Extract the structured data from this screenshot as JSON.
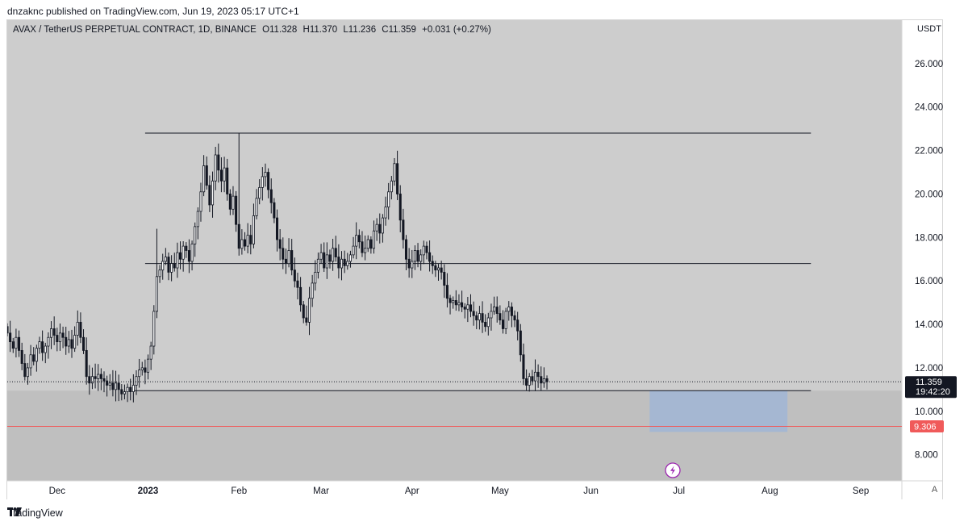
{
  "header": {
    "published": "dnzaknc published on TradingView.com, Jun 19, 2023 05:17 UTC+1"
  },
  "legend": {
    "symbol": "AVAX / TetherUS PERPETUAL CONTRACT, 1D, BINANCE",
    "open": "O11.328",
    "high": "H11.370",
    "low": "L11.236",
    "close": "C11.359",
    "change": "+0.031 (+0.27%)"
  },
  "price_axis": {
    "currency": "USDT",
    "ticks": [
      "26.000",
      "24.000",
      "22.000",
      "20.000",
      "18.000",
      "16.000",
      "14.000",
      "12.000",
      "10.000",
      "8.000"
    ],
    "last_price": "11.359",
    "countdown": "19:42:20",
    "target_label": "9.306"
  },
  "time_axis": {
    "labels": [
      "Dec",
      "2023",
      "Feb",
      "Mar",
      "Apr",
      "May",
      "Jun",
      "Jul",
      "Aug",
      "Sep"
    ],
    "scale_button": "A"
  },
  "footer": {
    "brand": "TradingView"
  },
  "colors": {
    "chart_bg": "#cdcdcd",
    "lower_zone": "#bfbfbf",
    "target_box": "#a5b7d2",
    "target_line": "#f05a5a",
    "candle_up": "#ffffff",
    "candle_down": "#131722",
    "event_icon": "#9c27b0"
  },
  "chart_data": {
    "type": "candlestick",
    "ylim": [
      6.8,
      28.0
    ],
    "price_ticks": [
      26,
      24,
      22,
      20,
      18,
      16,
      14,
      12,
      10,
      8
    ],
    "levels": [
      22.8,
      16.8,
      10.95
    ],
    "target_level": 9.306,
    "last_close": 11.359,
    "target_box": {
      "from": "2023-06-21",
      "to": "2023-08-07",
      "top": 10.95,
      "bottom": 9.05
    },
    "date_range": [
      "2022-11-14",
      "2023-09-15"
    ],
    "month_ticks": [
      {
        "label": "Dec",
        "date": "2022-12-01"
      },
      {
        "label": "2023",
        "date": "2023-01-01"
      },
      {
        "label": "Feb",
        "date": "2023-02-01"
      },
      {
        "label": "Mar",
        "date": "2023-03-01"
      },
      {
        "label": "Apr",
        "date": "2023-04-01"
      },
      {
        "label": "May",
        "date": "2023-05-01"
      },
      {
        "label": "Jun",
        "date": "2023-06-01"
      },
      {
        "label": "Jul",
        "date": "2023-07-01"
      },
      {
        "label": "Aug",
        "date": "2023-08-01"
      },
      {
        "label": "Sep",
        "date": "2023-09-01"
      }
    ],
    "series_start": "2022-11-14",
    "closes": [
      13.6,
      13.2,
      12.9,
      13.4,
      12.8,
      12.2,
      11.6,
      12.0,
      12.6,
      12.3,
      12.9,
      13.2,
      12.7,
      13.0,
      13.4,
      13.8,
      13.5,
      13.2,
      13.6,
      13.4,
      13.0,
      13.3,
      12.9,
      13.5,
      14.1,
      13.4,
      12.8,
      11.6,
      11.3,
      11.6,
      11.5,
      11.7,
      11.5,
      11.4,
      11.2,
      11.3,
      11.0,
      11.3,
      11.0,
      10.8,
      10.9,
      11.1,
      10.9,
      11.2,
      11.6,
      11.9,
      12.0,
      11.8,
      12.4,
      13.0,
      14.6,
      16.2,
      16.5,
      16.9,
      17.1,
      16.4,
      16.8,
      16.6,
      17.3,
      17.0,
      17.6,
      17.4,
      16.9,
      17.7,
      18.5,
      19.2,
      20.1,
      21.3,
      20.4,
      19.5,
      20.6,
      21.8,
      21.1,
      20.6,
      21.2,
      20.0,
      19.3,
      19.9,
      18.6,
      17.5,
      17.9,
      17.6,
      18.1,
      17.7,
      19.0,
      19.8,
      20.3,
      20.8,
      21.0,
      20.2,
      19.6,
      18.9,
      17.9,
      17.5,
      17.0,
      16.8,
      17.4,
      16.5,
      16.0,
      15.7,
      14.9,
      14.3,
      14.1,
      15.2,
      15.9,
      16.4,
      17.0,
      17.3,
      16.6,
      17.2,
      16.9,
      17.5,
      17.1,
      16.6,
      17.0,
      16.7,
      16.9,
      17.2,
      17.6,
      18.1,
      17.8,
      17.3,
      17.5,
      17.9,
      17.5,
      18.3,
      18.6,
      18.2,
      18.9,
      19.4,
      20.1,
      20.6,
      21.4,
      20.0,
      18.8,
      17.9,
      17.0,
      16.6,
      16.9,
      17.4,
      16.9,
      17.2,
      17.6,
      17.3,
      16.9,
      16.7,
      16.5,
      16.6,
      16.4,
      15.8,
      15.2,
      15.0,
      15.1,
      14.9,
      15.0,
      14.8,
      14.7,
      14.9,
      14.6,
      14.4,
      14.2,
      14.5,
      14.1,
      13.9,
      14.3,
      14.6,
      14.8,
      14.5,
      14.2,
      13.8,
      14.6,
      14.8,
      14.4,
      14.2,
      13.7,
      12.6,
      11.5,
      11.2,
      11.6,
      11.4,
      11.8,
      11.6,
      11.3,
      11.5,
      11.359
    ]
  }
}
